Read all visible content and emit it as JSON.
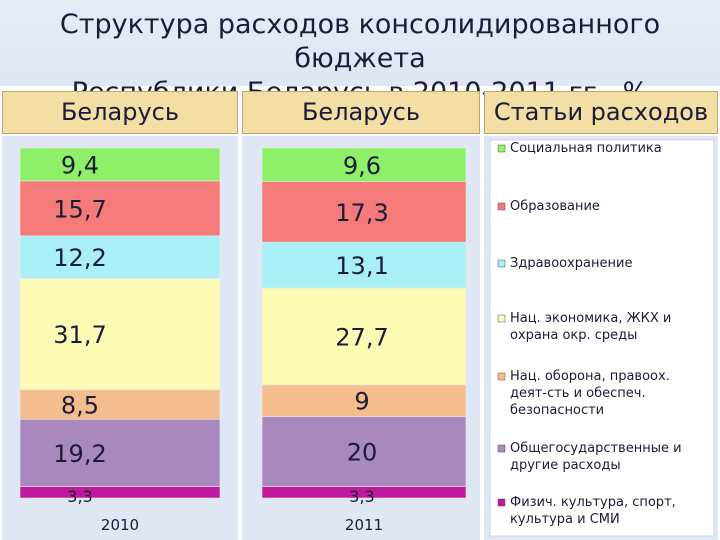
{
  "title_line1": "Структура расходов консолидированного бюджета",
  "title_line2": "Республики Беларусь в 2010-2011 гг., %",
  "headers": [
    "Беларусь",
    "Беларусь",
    "Статьи расходов"
  ],
  "chart_data": {
    "type": "bar",
    "stacked": true,
    "title": "Структура расходов консолидированного бюджета Республики Беларусь в 2010-2011 гг., %",
    "categories": [
      "2010",
      "2011"
    ],
    "series": [
      {
        "name": "Физич. культура, спорт, культура и СМИ",
        "color": "#c0189c",
        "values": [
          3.3,
          3.3
        ]
      },
      {
        "name": "Общегосударственные и другие расходы",
        "color": "#a988be",
        "values": [
          19.2,
          20
        ]
      },
      {
        "name": "Нац. оборона, правоох. деят-сть и обеспеч. безопасности",
        "color": "#f5bd8d",
        "values": [
          8.5,
          9
        ]
      },
      {
        "name": "Нац. экономика, ЖКХ и охрана окр. среды",
        "color": "#fbfbb3",
        "values": [
          31.7,
          27.7
        ]
      },
      {
        "name": "Здравоохранение",
        "color": "#a9eff6",
        "values": [
          12.2,
          13.1
        ]
      },
      {
        "name": "Образование",
        "color": "#f57a7a",
        "values": [
          15.7,
          17.3
        ]
      },
      {
        "name": "Социальная политика",
        "color": "#8ef066",
        "values": [
          9.4,
          9.6
        ]
      }
    ],
    "value_labels": [
      [
        "3,3",
        "19,2",
        "8,5",
        "31,7",
        "12,2",
        "15,7",
        "9,4"
      ],
      [
        "3,3",
        "20",
        "9",
        "27,7",
        "13,1",
        "17,3",
        "9,6"
      ]
    ],
    "legend": [
      {
        "label": "Социальная политика",
        "color": "#8ef066"
      },
      {
        "label": "Образование",
        "color": "#f57a7a"
      },
      {
        "label": "Здравоохранение",
        "color": "#a9eff6"
      },
      {
        "label": "Нац. экономика, ЖКХ и охрана окр. среды",
        "color": "#fbfbb3"
      },
      {
        "label": "Нац. оборона, правоох. деят-сть и обеспеч. безопасности",
        "color": "#f5bd8d"
      },
      {
        "label": "Общегосударственные и другие расходы",
        "color": "#a988be"
      },
      {
        "label": "Физич. культура, спорт, культура и СМИ",
        "color": "#c0189c"
      }
    ]
  }
}
